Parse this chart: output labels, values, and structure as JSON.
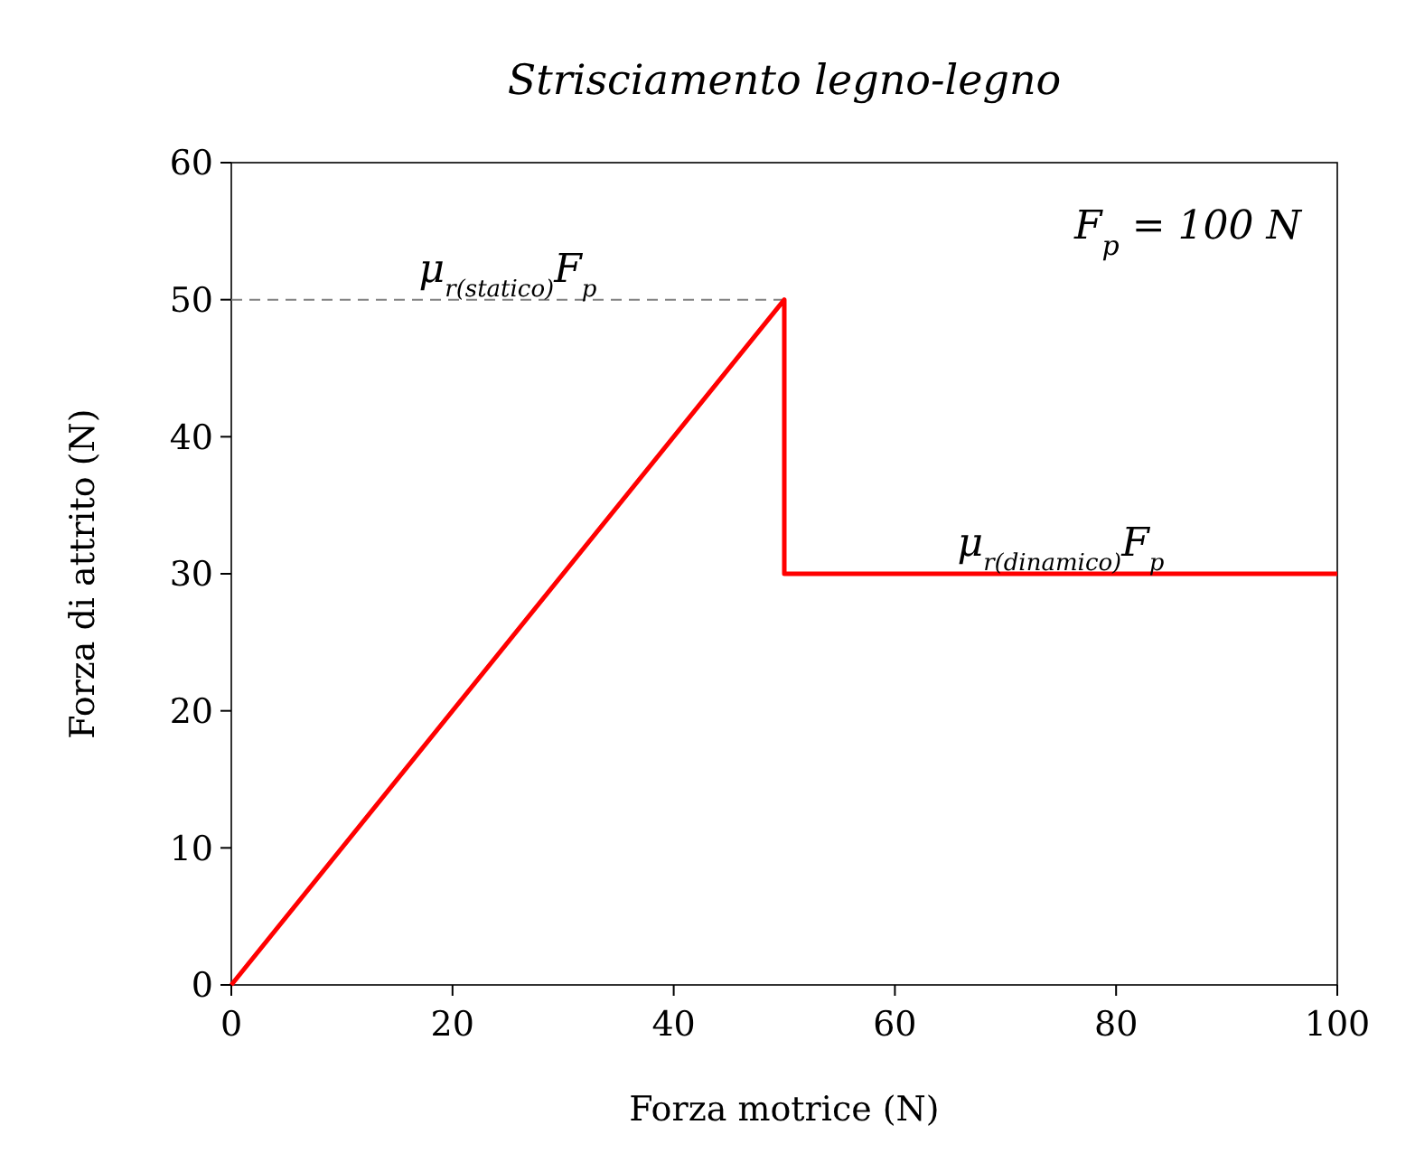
{
  "chart_data": {
    "type": "line",
    "title": "Strisciamento legno-legno",
    "xlabel": "Forza motrice (N)",
    "ylabel": "Forza di attrito (N)",
    "xlim": [
      0,
      100
    ],
    "ylim": [
      0,
      60
    ],
    "xticks": [
      0,
      20,
      40,
      60,
      80,
      100
    ],
    "yticks": [
      0,
      10,
      20,
      30,
      40,
      50,
      60
    ],
    "series": [
      {
        "color": "#808080",
        "line_style": "dashed",
        "x": [
          0,
          50
        ],
        "values": [
          50,
          50
        ]
      },
      {
        "color": "#ff0000",
        "line_style": "solid",
        "x": [
          0,
          50,
          50,
          100
        ],
        "values": [
          0,
          50,
          30,
          30
        ]
      }
    ],
    "annotations": [
      {
        "text": "μ$_{r(statico)}$F$_{p}$",
        "x": 25,
        "y": 50
      },
      {
        "text": "μ$_{r(dinamico)}$F$_{p}$",
        "x": 75,
        "y": 30
      },
      "F$_{p}$ = 100 N"
    ]
  }
}
